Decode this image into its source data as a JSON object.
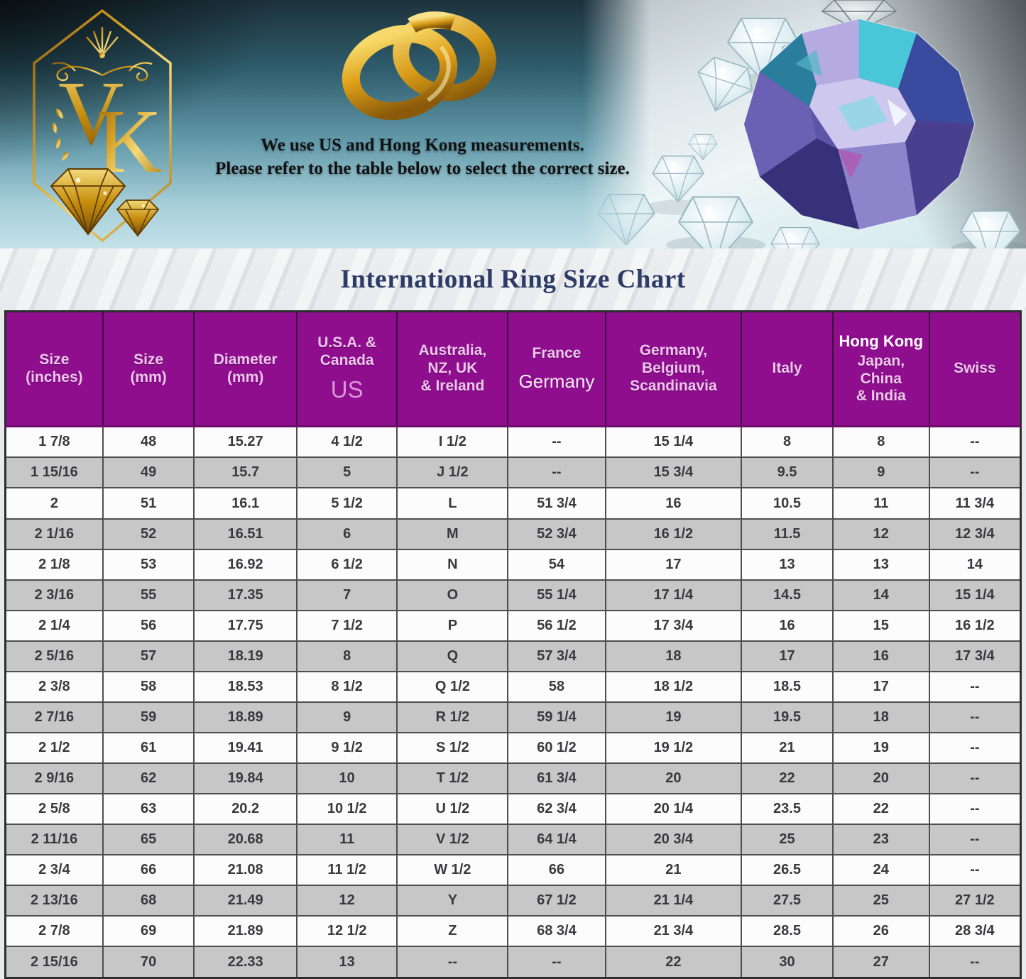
{
  "banner": {
    "logo_letters": "VK",
    "message_line1": "We use US and Hong Kong measurements.",
    "message_line2": "Please refer to the table below to select the correct size."
  },
  "title": "International Ring Size Chart",
  "colors": {
    "header_purple": "#8e0e8e",
    "header_text_pink": "#efc7ec",
    "overlay_us_pink": "#da96d6",
    "row_gray": "#c7c7c7",
    "row_white": "#fcfcfc",
    "cell_text": "#3a3a3e",
    "title_navy": "#2d3c66",
    "logo_gold": "#d8a022",
    "banner_teal": "#659cac"
  },
  "table": {
    "headers": [
      {
        "main": "Size\n(inches)"
      },
      {
        "main": "Size\n(mm)"
      },
      {
        "main": "Diameter\n(mm)"
      },
      {
        "main": "U.S.A. &\nCanada",
        "overlay": "US"
      },
      {
        "main": "Australia,\nNZ, UK\n& Ireland"
      },
      {
        "main": "France",
        "overlay": "Germany"
      },
      {
        "main": "Germany,\nBelgium,\nScandinavia"
      },
      {
        "main": "Italy"
      },
      {
        "main": "Japan,\nChina\n& India",
        "overlay_top": "Hong Kong"
      },
      {
        "main": "Swiss"
      }
    ],
    "rows": [
      [
        "1 7/8",
        "48",
        "15.27",
        "4 1/2",
        "I 1/2",
        "--",
        "15 1/4",
        "8",
        "8",
        "--"
      ],
      [
        "1 15/16",
        "49",
        "15.7",
        "5",
        "J 1/2",
        "--",
        "15 3/4",
        "9.5",
        "9",
        "--"
      ],
      [
        "2",
        "51",
        "16.1",
        "5 1/2",
        "L",
        "51 3/4",
        "16",
        "10.5",
        "11",
        "11 3/4"
      ],
      [
        "2 1/16",
        "52",
        "16.51",
        "6",
        "M",
        "52 3/4",
        "16 1/2",
        "11.5",
        "12",
        "12 3/4"
      ],
      [
        "2 1/8",
        "53",
        "16.92",
        "6 1/2",
        "N",
        "54",
        "17",
        "13",
        "13",
        "14"
      ],
      [
        "2 3/16",
        "55",
        "17.35",
        "7",
        "O",
        "55 1/4",
        "17 1/4",
        "14.5",
        "14",
        "15 1/4"
      ],
      [
        "2 1/4",
        "56",
        "17.75",
        "7 1/2",
        "P",
        "56 1/2",
        "17 3/4",
        "16",
        "15",
        "16 1/2"
      ],
      [
        "2 5/16",
        "57",
        "18.19",
        "8",
        "Q",
        "57 3/4",
        "18",
        "17",
        "16",
        "17 3/4"
      ],
      [
        "2 3/8",
        "58",
        "18.53",
        "8 1/2",
        "Q 1/2",
        "58",
        "18 1/2",
        "18.5",
        "17",
        "--"
      ],
      [
        "2 7/16",
        "59",
        "18.89",
        "9",
        "R 1/2",
        "59 1/4",
        "19",
        "19.5",
        "18",
        "--"
      ],
      [
        "2 1/2",
        "61",
        "19.41",
        "9 1/2",
        "S 1/2",
        "60 1/2",
        "19 1/2",
        "21",
        "19",
        "--"
      ],
      [
        "2 9/16",
        "62",
        "19.84",
        "10",
        "T 1/2",
        "61 3/4",
        "20",
        "22",
        "20",
        "--"
      ],
      [
        "2 5/8",
        "63",
        "20.2",
        "10 1/2",
        "U 1/2",
        "62 3/4",
        "20 1/4",
        "23.5",
        "22",
        "--"
      ],
      [
        "2 11/16",
        "65",
        "20.68",
        "11",
        "V 1/2",
        "64 1/4",
        "20 3/4",
        "25",
        "23",
        "--"
      ],
      [
        "2 3/4",
        "66",
        "21.08",
        "11 1/2",
        "W 1/2",
        "66",
        "21",
        "26.5",
        "24",
        "--"
      ],
      [
        "2 13/16",
        "68",
        "21.49",
        "12",
        "Y",
        "67 1/2",
        "21 1/4",
        "27.5",
        "25",
        "27 1/2"
      ],
      [
        "2 7/8",
        "69",
        "21.89",
        "12 1/2",
        "Z",
        "68 3/4",
        "21 3/4",
        "28.5",
        "26",
        "28 3/4"
      ],
      [
        "2 15/16",
        "70",
        "22.33",
        "13",
        "--",
        "--",
        "22",
        "30",
        "27",
        "--"
      ]
    ]
  }
}
